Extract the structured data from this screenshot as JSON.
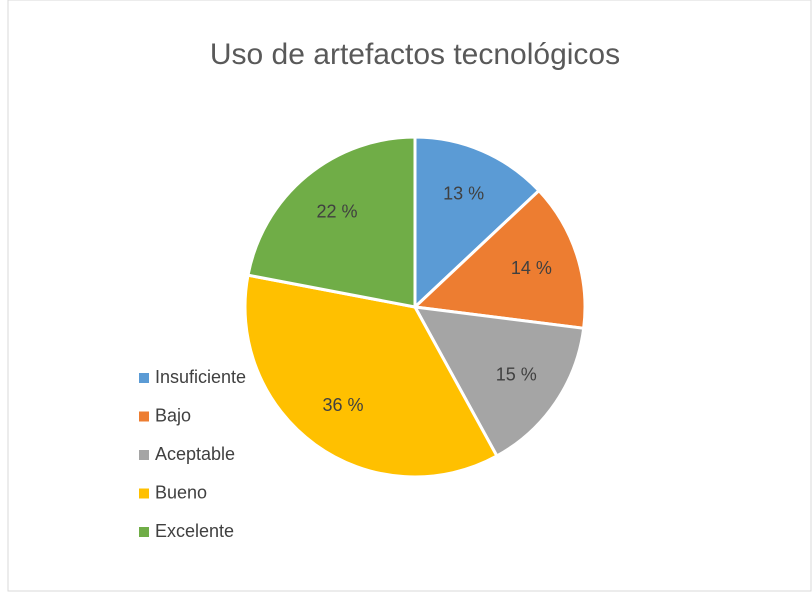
{
  "chart_data": {
    "type": "pie",
    "title": "Uso de artefactos tecnológicos",
    "categories": [
      "Insuficiente",
      "Bajo",
      "Aceptable",
      "Bueno",
      "Excelente"
    ],
    "values": [
      13,
      14,
      15,
      36,
      22
    ],
    "value_labels": [
      "13 %",
      "14 %",
      "15 %",
      "36 %",
      "22 %"
    ],
    "colors": [
      "#5b9bd5",
      "#ed7d31",
      "#a5a5a5",
      "#ffc000",
      "#70ad47"
    ],
    "legend": "left"
  }
}
